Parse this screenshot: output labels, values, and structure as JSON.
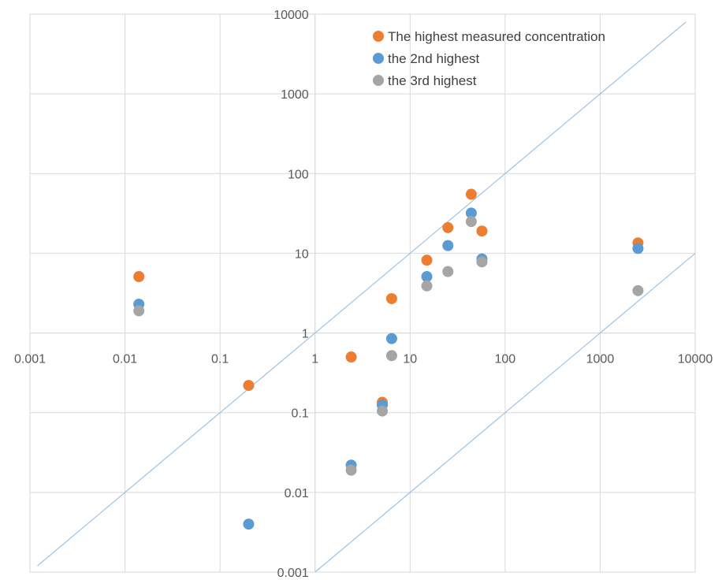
{
  "chart_data": {
    "type": "scatter",
    "x_scale": "log",
    "y_scale": "log",
    "xlim": [
      0.001,
      10000
    ],
    "ylim": [
      0.001,
      10000
    ],
    "x_ticks": [
      "0.001",
      "0.01",
      "0.1",
      "1",
      "10",
      "100",
      "1000",
      "10000"
    ],
    "y_ticks": [
      "0.001",
      "0.01",
      "0.1",
      "1",
      "10",
      "100",
      "1000",
      "10000"
    ],
    "grid": true,
    "legend_position": "top-right",
    "reference_lines": [
      {
        "description": "y = x",
        "points": [
          [
            0.0012,
            0.0012
          ],
          [
            8000,
            8000
          ]
        ]
      },
      {
        "description": "y = x / 1000",
        "points": [
          [
            1,
            0.001
          ],
          [
            10000,
            10
          ]
        ]
      }
    ],
    "series": [
      {
        "name": "The highest measured concentration",
        "color": "#ed7d31",
        "points": [
          [
            0.014,
            5.1
          ],
          [
            0.2,
            0.22
          ],
          [
            2.4,
            0.5
          ],
          [
            5.1,
            0.135
          ],
          [
            6.4,
            2.7
          ],
          [
            15,
            8.2
          ],
          [
            25,
            21
          ],
          [
            44,
            55
          ],
          [
            57,
            19
          ],
          [
            2500,
            13.5
          ]
        ]
      },
      {
        "name": "the 2nd highest",
        "color": "#5b9bd5",
        "points": [
          [
            0.014,
            2.3
          ],
          [
            0.2,
            0.004
          ],
          [
            2.4,
            0.022
          ],
          [
            5.1,
            0.125
          ],
          [
            6.4,
            0.85
          ],
          [
            15,
            5.1
          ],
          [
            25,
            12.5
          ],
          [
            44,
            32
          ],
          [
            57,
            8.5
          ],
          [
            2500,
            11.5
          ]
        ]
      },
      {
        "name": "the 3rd highest",
        "color": "#a5a5a5",
        "points": [
          [
            0.014,
            1.9
          ],
          [
            2.4,
            0.019
          ],
          [
            5.1,
            0.105
          ],
          [
            6.4,
            0.52
          ],
          [
            15,
            3.9
          ],
          [
            25,
            5.9
          ],
          [
            44,
            25
          ],
          [
            57,
            7.8
          ],
          [
            2500,
            3.4
          ]
        ]
      }
    ]
  }
}
